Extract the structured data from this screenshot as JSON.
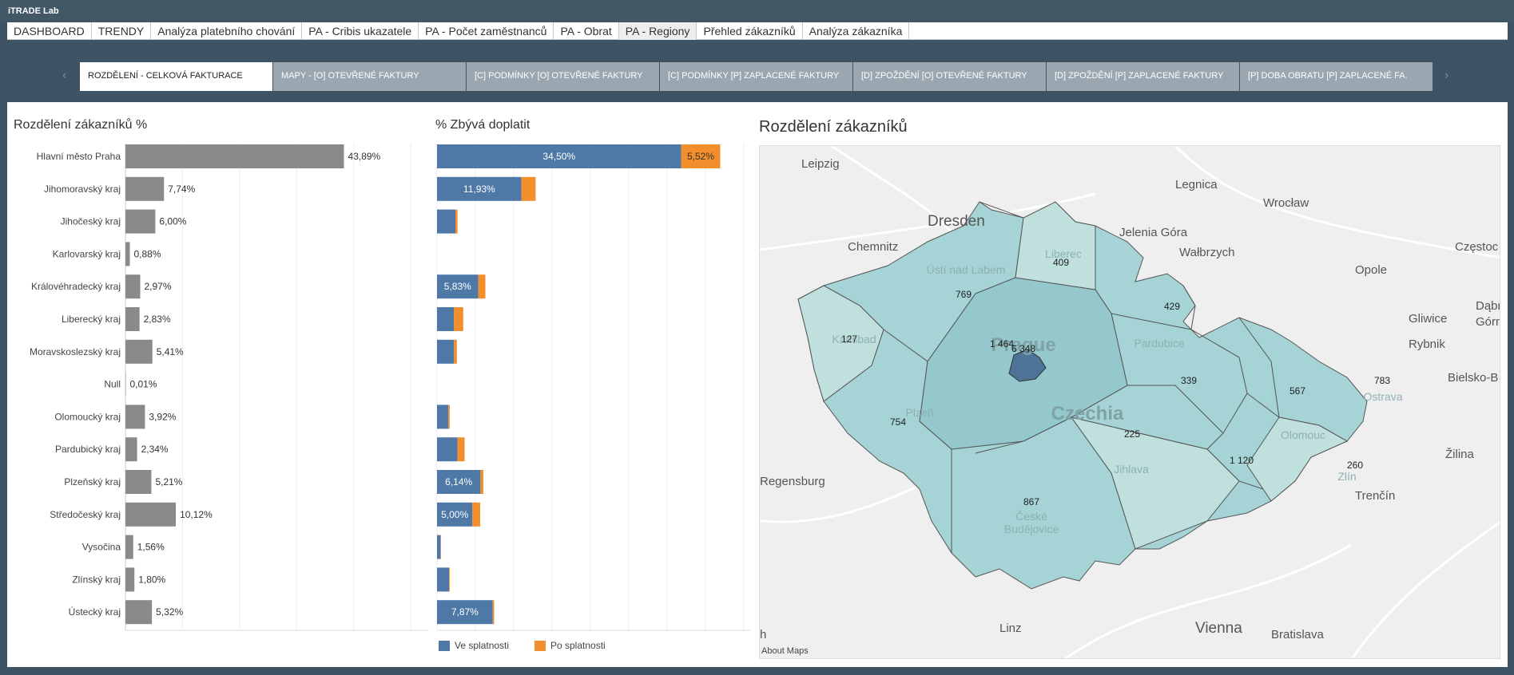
{
  "app_title": "iTRADE Lab",
  "top_tabs": [
    {
      "label": "DASHBOARD",
      "active": false
    },
    {
      "label": "TRENDY",
      "active": false
    },
    {
      "label": "Analýza platebního chování",
      "active": false
    },
    {
      "label": "PA - Cribis ukazatele",
      "active": false
    },
    {
      "label": "PA - Počet zaměstnanců",
      "active": false
    },
    {
      "label": "PA - Obrat",
      "active": false
    },
    {
      "label": "PA - Regiony",
      "active": true
    },
    {
      "label": "Přehled zákazníků",
      "active": false
    },
    {
      "label": "Analýza zákazníka",
      "active": false
    }
  ],
  "sub_tabs": [
    {
      "label": "ROZDĚLENÍ - CELKOVÁ FAKTURACE",
      "active": true
    },
    {
      "label": "MAPY - [O] OTEVŘENÉ FAKTURY",
      "active": false
    },
    {
      "label": "[C] PODMÍNKY [O] OTEVŘENÉ FAKTURY",
      "active": false
    },
    {
      "label": "[C] PODMÍNKY [P] ZAPLACENÉ FAKTURY",
      "active": false
    },
    {
      "label": "[D] ZPOŽDĚNÍ [O] OTEVŘENÉ FAKTURY",
      "active": false
    },
    {
      "label": "[D] ZPOŽDĚNÍ [P] ZAPLACENÉ FAKTURY",
      "active": false
    },
    {
      "label": "[P] DOBA OBRATU [P] ZAPLACENÉ FA.",
      "active": false
    }
  ],
  "colors": {
    "gray_bar": "#8a8a8a",
    "in_due": "#4e79a7",
    "overdue": "#f28e2b",
    "map_region": "#a5d3d6",
    "map_prague": "#4d7396"
  },
  "chart_data": [
    {
      "type": "bar",
      "title": "Rozdělení zákazníků %",
      "orientation": "horizontal",
      "categories": [
        "Hlavní město Praha",
        "Jihomoravský kraj",
        "Jihočeský kraj",
        "Karlovarský kraj",
        "Královéhradecký kraj",
        "Liberecký kraj",
        "Moravskoslezský kraj",
        "Null",
        "Olomoucký kraj",
        "Pardubický kraj",
        "Plzeňský kraj",
        "Středočeský kraj",
        "Vysočina",
        "Zlínský kraj",
        "Ústecký kraj"
      ],
      "values": [
        43.89,
        7.74,
        6.0,
        0.88,
        2.97,
        2.83,
        5.41,
        0.01,
        3.92,
        2.34,
        5.21,
        10.12,
        1.56,
        1.8,
        5.32
      ],
      "value_labels": [
        "43,89%",
        "7,74%",
        "6,00%",
        "0,88%",
        "2,97%",
        "2,83%",
        "5,41%",
        "0,01%",
        "3,92%",
        "2,34%",
        "5,21%",
        "10,12%",
        "1,56%",
        "1,80%",
        "5,32%"
      ],
      "xlim": [
        0,
        50
      ]
    },
    {
      "type": "bar",
      "stacked": true,
      "orientation": "horizontal",
      "title": "% Zbývá doplatit",
      "categories": [
        "Hlavní město Praha",
        "Jihomoravský kraj",
        "Jihočeský kraj",
        "Karlovarský kraj",
        "Královéhradecký kraj",
        "Liberecký kraj",
        "Moravskoslezský kraj",
        "Null",
        "Olomoucký kraj",
        "Pardubický kraj",
        "Plzeňský kraj",
        "Středočeský kraj",
        "Vysočina",
        "Zlínský kraj",
        "Ústecký kraj"
      ],
      "series": [
        {
          "name": "Ve splatnosti",
          "values": [
            34.5,
            11.93,
            2.6,
            0,
            5.83,
            2.4,
            2.4,
            0,
            1.6,
            2.9,
            6.14,
            5.0,
            0.5,
            1.7,
            7.87
          ],
          "labels": [
            "34,50%",
            "11,93%",
            "",
            "",
            "5,83%",
            "",
            "",
            "",
            "",
            "",
            "6,14%",
            "5,00%",
            "",
            "",
            "7,87%"
          ]
        },
        {
          "name": "Po splatnosti",
          "values": [
            5.52,
            2.0,
            0.3,
            0,
            1.0,
            1.3,
            0.4,
            0,
            0.2,
            1.0,
            0.4,
            1.1,
            0.05,
            0.1,
            0.2
          ],
          "labels": [
            "5,52%",
            "",
            "",
            "",
            "",
            "",
            "",
            "",
            "",
            "",
            "",
            "",
            "",
            "",
            ""
          ]
        }
      ],
      "xlim": [
        0,
        42
      ]
    }
  ],
  "legend": {
    "in_due": "Ve splatnosti",
    "overdue": "Po splatnosti"
  },
  "map": {
    "title": "Rozdělení zákazníků",
    "footer": "About Maps",
    "region_values": {
      "karlovarsky": "127",
      "ustecky": "769",
      "liberecky": "409",
      "kralovehradecky": "429",
      "stredocesky": "1 464",
      "praha": "6 348",
      "pardubicky": "339",
      "olomoucky": "567",
      "moravskoslezsky": "783",
      "plzensky": "754",
      "jihocesky": "867",
      "vysocina": "225",
      "jihomoravsky": "1 120",
      "zlinsky": "260"
    },
    "cities": {
      "leipzig": "Leipzig",
      "dresden": "Dresden",
      "chemnitz": "Chemnitz",
      "legnica": "Legnica",
      "wroclaw": "Wrocław",
      "jelenia_gora": "Jelenia Góra",
      "walbrzych": "Wałbrzych",
      "opole": "Opole",
      "czestochowa": "Częstoc",
      "dabrowa": "Dąbr",
      "gorna": "Górn",
      "gliwice": "Gliwice",
      "rybnik": "Rybnik",
      "bielsko": "Bielsko-B",
      "zilina": "Žilina",
      "trencin": "Trenčín",
      "regensburg": "Regensburg",
      "linz": "Linz",
      "vienna": "Vienna",
      "bratislava": "Bratislava",
      "edge_h": "h"
    },
    "region_names": {
      "prague": "Prague",
      "czechia": "Czechia",
      "karlovy": "Karlsbad",
      "plzen": "Plzeň",
      "pardubice": "Pardubice",
      "liberec": "Liberec",
      "usti": "Ústí nad Labem",
      "olomouc": "Olomouc",
      "ostrava": "Ostrava",
      "jihlava": "Jihlava",
      "ceske": "České",
      "budejovice": "Budějovice",
      "zlin": "Zlín"
    }
  }
}
